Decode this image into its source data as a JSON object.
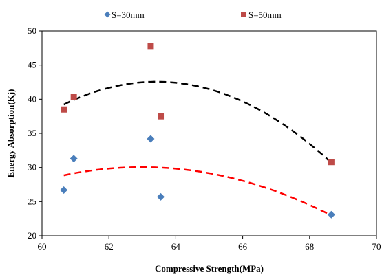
{
  "chart_data": {
    "type": "scatter",
    "xlabel": "Compressive Strength(MPa)",
    "ylabel": "Energy Absorption(Kj)",
    "xlim": [
      60,
      70
    ],
    "ylim": [
      20,
      50
    ],
    "xticks": [
      60,
      62,
      64,
      66,
      68,
      70
    ],
    "yticks": [
      20,
      25,
      30,
      35,
      40,
      45,
      50
    ],
    "xtick_labels": [
      "60",
      "62",
      "64",
      "66",
      "68",
      "70"
    ],
    "ytick_labels": [
      "20",
      "25",
      "30",
      "35",
      "40",
      "45",
      "50"
    ],
    "grid": false,
    "legend_position": "top",
    "series": [
      {
        "name": "S=30mm",
        "marker": "diamond",
        "color": "#4a7ebb",
        "trend_color": "#ff0000",
        "x": [
          60.65,
          60.95,
          63.25,
          63.55,
          68.65
        ],
        "y": [
          26.7,
          31.3,
          34.2,
          25.7,
          23.1
        ]
      },
      {
        "name": "S=50mm",
        "marker": "square",
        "color": "#be4b48",
        "trend_color": "#000000",
        "x": [
          60.65,
          60.95,
          63.25,
          63.55,
          68.65
        ],
        "y": [
          38.5,
          40.3,
          47.8,
          37.5,
          30.8
        ]
      }
    ]
  }
}
